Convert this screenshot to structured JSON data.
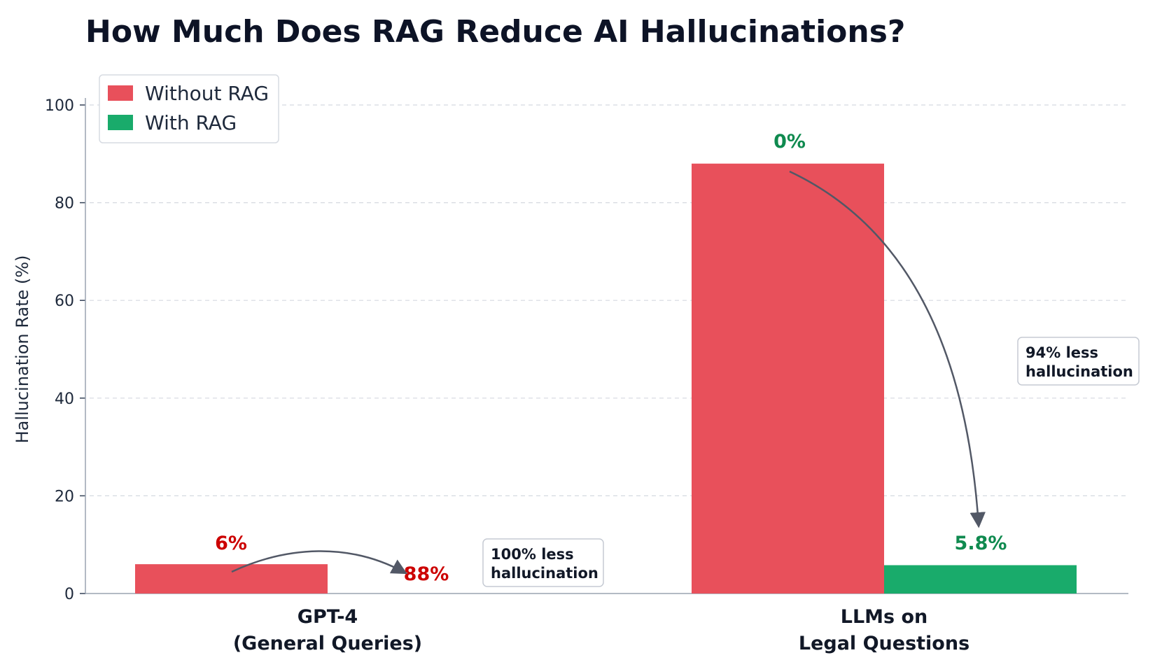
{
  "chart_data": {
    "type": "bar",
    "title": "How Much Does RAG Reduce AI Hallucinations?",
    "xlabel": "",
    "ylabel": "Hallucination Rate (%)",
    "ylim": [
      0,
      100
    ],
    "yticks": [
      "0",
      "20",
      "40",
      "60",
      "80",
      "100"
    ],
    "grid": true,
    "legend_position": "top-left",
    "categories": [
      [
        "GPT-4",
        "(General Queries)"
      ],
      [
        "LLMs on",
        "Legal Questions"
      ]
    ],
    "series": [
      {
        "name": "Without RAG",
        "color": "#e8505b",
        "values": [
          6,
          88
        ],
        "labels": [
          "6%",
          "88%"
        ],
        "label_color": "#cc0000"
      },
      {
        "name": "With RAG",
        "color": "#19ab6b",
        "values": [
          0,
          5.8
        ],
        "labels": [
          "0%",
          "5.8%"
        ],
        "label_color": "#0f8a4f"
      }
    ],
    "annotations": [
      {
        "category": 0,
        "lines": [
          "100% less",
          "hallucination"
        ]
      },
      {
        "category": 1,
        "lines": [
          "94% less",
          "hallucination"
        ]
      }
    ]
  }
}
